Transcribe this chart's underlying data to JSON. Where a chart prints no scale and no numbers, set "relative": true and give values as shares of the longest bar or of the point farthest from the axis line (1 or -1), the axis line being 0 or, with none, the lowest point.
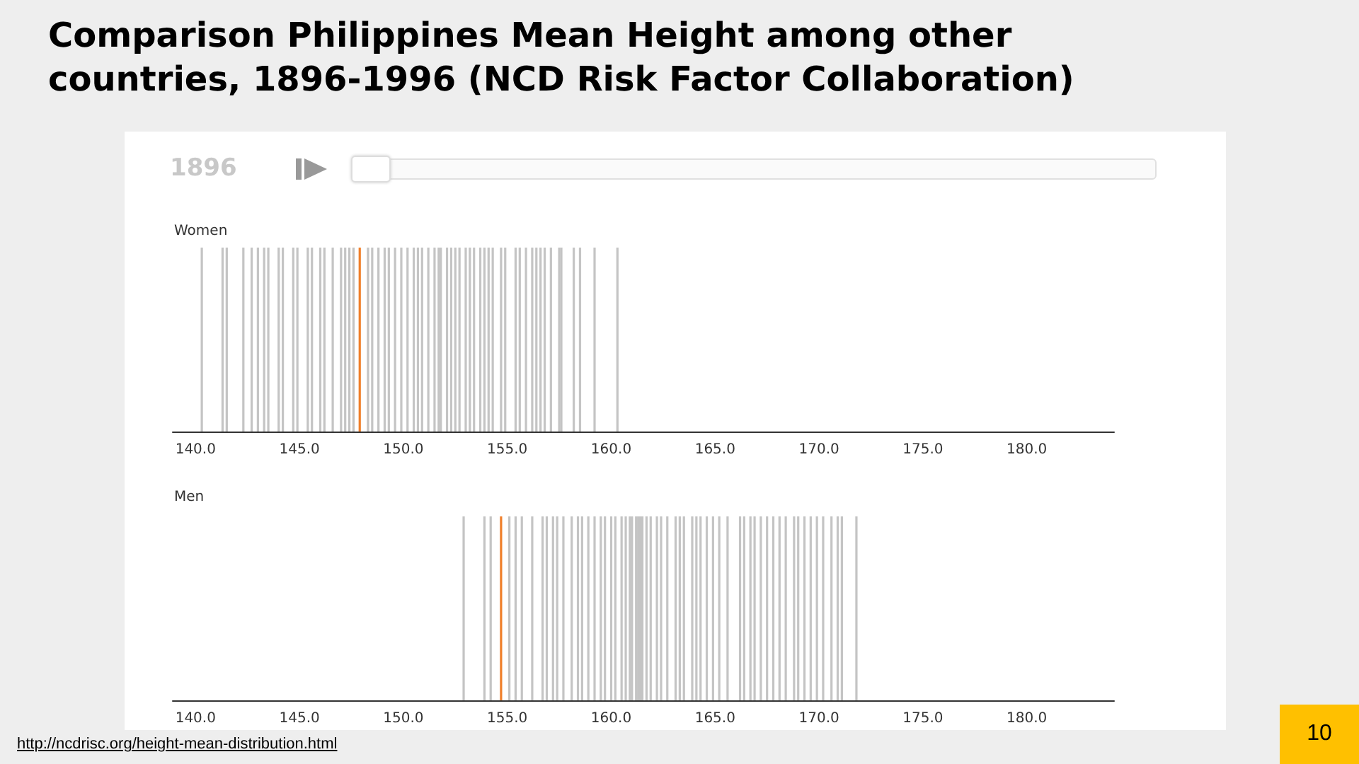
{
  "chart_data": [
    {
      "type": "bar",
      "title": "Comparison Philippines Mean Height among other countries, 1896-1996 (NCD Risk Factor Collaboration)",
      "subtitle": "Women",
      "annotations": [
        "1896"
      ],
      "relative": true,
      "xlim": [
        138.9,
        184.2
      ],
      "xticks": [
        {
          "value": 140,
          "label": "140.0"
        },
        {
          "value": 145,
          "label": "145.0"
        },
        {
          "value": 150,
          "label": "150.0"
        },
        {
          "value": 155,
          "label": "155.0"
        },
        {
          "value": 160,
          "label": "160.0"
        },
        {
          "value": 165,
          "label": "165.0"
        },
        {
          "value": 170,
          "label": "170.0"
        },
        {
          "value": 175,
          "label": "175.0"
        },
        {
          "value": 180,
          "label": "180.0"
        }
      ],
      "grid": false,
      "series": [
        {
          "color": "#c4c4c4",
          "x": [
            140.3,
            141.3,
            141.5,
            142.3,
            142.7,
            143.0,
            143.3,
            143.5,
            144.0,
            144.2,
            144.7,
            144.9,
            145.4,
            145.6,
            146.0,
            146.2,
            146.6,
            147.0,
            147.2,
            147.4,
            147.6,
            148.3,
            148.5,
            148.8,
            149.1,
            149.3,
            149.6,
            149.9,
            150.2,
            150.5,
            150.7,
            150.9,
            151.2,
            151.5,
            151.7,
            151.8,
            152.1,
            152.3,
            152.5,
            152.7,
            153.0,
            153.2,
            153.4,
            153.7,
            153.9,
            154.1,
            154.3,
            154.7,
            154.9,
            155.4,
            155.6,
            155.9,
            156.2,
            156.4,
            156.6,
            156.8,
            157.1,
            157.5,
            157.6,
            158.2,
            158.5,
            159.2,
            160.3
          ],
          "values": [
            1,
            1,
            1,
            1,
            1,
            1,
            1,
            1,
            1,
            1,
            1,
            1,
            1,
            1,
            1,
            1,
            1,
            1,
            1,
            1,
            1,
            1,
            1,
            1,
            1,
            1,
            1,
            1,
            1,
            1,
            1,
            1,
            1,
            1,
            1,
            1,
            1,
            1,
            1,
            1,
            1,
            1,
            1,
            1,
            1,
            1,
            1,
            1,
            1,
            1,
            1,
            1,
            1,
            1,
            1,
            1,
            1,
            1,
            1,
            1,
            1,
            1,
            1
          ]
        },
        {
          "color": "#f07f2a",
          "x": [
            147.9
          ],
          "values": [
            1
          ]
        }
      ]
    },
    {
      "type": "bar",
      "title": "Men",
      "annotations": [
        "http://ncdrisc.org/height-mean-distribution.html",
        "10"
      ],
      "relative": true,
      "xlim": [
        138.9,
        184.2
      ],
      "xticks": [
        {
          "value": 140,
          "label": "140.0"
        },
        {
          "value": 145,
          "label": "145.0"
        },
        {
          "value": 150,
          "label": "150.0"
        },
        {
          "value": 155,
          "label": "155.0"
        },
        {
          "value": 160,
          "label": "160.0"
        },
        {
          "value": 165,
          "label": "165.0"
        },
        {
          "value": 170,
          "label": "170.0"
        },
        {
          "value": 175,
          "label": "175.0"
        },
        {
          "value": 180,
          "label": "180.0"
        }
      ],
      "grid": false,
      "series": [
        {
          "color": "#c4c4c4",
          "x": [
            152.9,
            153.9,
            154.2,
            155.1,
            155.4,
            155.7,
            156.2,
            156.7,
            156.9,
            157.2,
            157.4,
            157.7,
            158.1,
            158.4,
            158.6,
            158.9,
            159.2,
            159.5,
            159.7,
            160.0,
            160.2,
            160.5,
            160.7,
            160.9,
            161.0,
            161.2,
            161.3,
            161.4,
            161.5,
            161.7,
            161.9,
            162.2,
            162.4,
            162.7,
            163.1,
            163.3,
            163.5,
            163.9,
            164.1,
            164.3,
            164.6,
            164.9,
            165.2,
            165.6,
            166.2,
            166.4,
            166.7,
            166.9,
            167.2,
            167.5,
            167.8,
            168.1,
            168.4,
            168.8,
            169.0,
            169.3,
            169.6,
            169.9,
            170.2,
            170.6,
            170.9,
            171.1,
            171.8
          ],
          "values": [
            1,
            1,
            1,
            1,
            1,
            1,
            1,
            1,
            1,
            1,
            1,
            1,
            1,
            1,
            1,
            1,
            1,
            1,
            1,
            1,
            1,
            1,
            1,
            1,
            1,
            1,
            1,
            1,
            1,
            1,
            1,
            1,
            1,
            1,
            1,
            1,
            1,
            1,
            1,
            1,
            1,
            1,
            1,
            1,
            1,
            1,
            1,
            1,
            1,
            1,
            1,
            1,
            1,
            1,
            1,
            1,
            1,
            1,
            1,
            1,
            1,
            1,
            1
          ]
        },
        {
          "color": "#f07f2a",
          "x": [
            154.7
          ],
          "values": [
            1
          ]
        }
      ]
    }
  ]
}
